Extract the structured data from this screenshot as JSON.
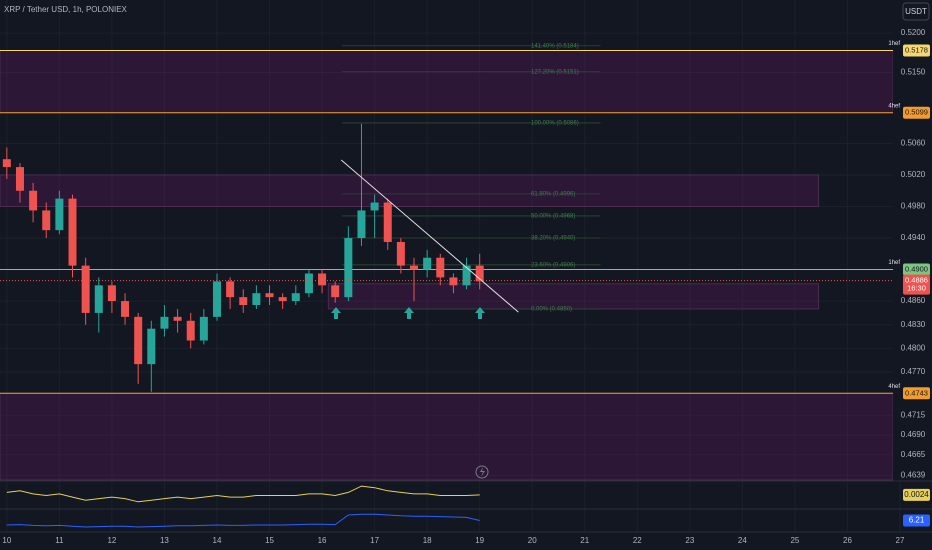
{
  "chart_data": {
    "type": "candlestick",
    "title": "XRP / Tether USD, 1h, POLONIEX",
    "currency_button": "USDT",
    "xlim": [
      9.87,
      27
    ],
    "xticks": [
      10,
      11,
      12,
      13,
      14,
      15,
      16,
      17,
      18,
      19,
      20,
      21,
      22,
      23,
      24,
      25,
      26,
      27
    ],
    "ylim": [
      0.4633,
      0.5242
    ],
    "yticks": [
      {
        "value": 0.52,
        "label": "0.5200"
      },
      {
        "value": 0.515,
        "label": "0.5150"
      },
      {
        "value": 0.506,
        "label": "0.5060"
      },
      {
        "value": 0.502,
        "label": "0.5020"
      },
      {
        "value": 0.498,
        "label": "0.4980"
      },
      {
        "value": 0.494,
        "label": "0.4940"
      },
      {
        "value": 0.486,
        "label": "0.4860"
      },
      {
        "value": 0.483,
        "label": "0.4830"
      },
      {
        "value": 0.48,
        "label": "0.4800"
      },
      {
        "value": 0.477,
        "label": "0.4770"
      },
      {
        "value": 0.4715,
        "label": "0.4715"
      },
      {
        "value": 0.469,
        "label": "0.4690"
      },
      {
        "value": 0.4665,
        "label": "0.4665"
      },
      {
        "value": 0.4639,
        "label": "0.4639"
      }
    ],
    "up_color": "#26a69a",
    "down_color": "#ef5350",
    "x": [
      10,
      10.25,
      10.5,
      10.75,
      11,
      11.25,
      11.5,
      11.75,
      12,
      12.25,
      12.5,
      12.75,
      13,
      13.25,
      13.5,
      13.75,
      14,
      14.25,
      14.5,
      14.75,
      15,
      15.25,
      15.5,
      15.75,
      16,
      16.25,
      16.5,
      16.75,
      17,
      17.25,
      17.5,
      17.75,
      18,
      18.25,
      18.5,
      18.75,
      19
    ],
    "open": [
      0.504,
      0.503,
      0.5,
      0.4975,
      0.495,
      0.499,
      0.4905,
      0.4845,
      0.488,
      0.486,
      0.484,
      0.478,
      0.4825,
      0.484,
      0.4835,
      0.481,
      0.484,
      0.4885,
      0.4865,
      0.4855,
      0.487,
      0.4865,
      0.486,
      0.487,
      0.4895,
      0.488,
      0.4865,
      0.494,
      0.4975,
      0.4985,
      0.4935,
      0.4905,
      0.49,
      0.4915,
      0.489,
      0.488,
      0.4905
    ],
    "high": [
      0.5055,
      0.5035,
      0.501,
      0.4985,
      0.5,
      0.4995,
      0.4915,
      0.489,
      0.4885,
      0.487,
      0.4845,
      0.4835,
      0.4855,
      0.485,
      0.4845,
      0.485,
      0.4895,
      0.489,
      0.4875,
      0.488,
      0.488,
      0.487,
      0.488,
      0.49,
      0.49,
      0.4885,
      0.4955,
      0.5085,
      0.4995,
      0.499,
      0.494,
      0.4915,
      0.4925,
      0.492,
      0.4895,
      0.4915,
      0.492
    ],
    "low": [
      0.5015,
      0.4985,
      0.496,
      0.494,
      0.4945,
      0.489,
      0.483,
      0.482,
      0.4845,
      0.483,
      0.4755,
      0.4745,
      0.4815,
      0.482,
      0.48,
      0.4805,
      0.4835,
      0.485,
      0.4845,
      0.485,
      0.4855,
      0.485,
      0.4855,
      0.4865,
      0.487,
      0.4858,
      0.486,
      0.493,
      0.494,
      0.4925,
      0.4895,
      0.486,
      0.489,
      0.488,
      0.487,
      0.4875,
      0.4875
    ],
    "close": [
      0.503,
      0.5,
      0.4975,
      0.495,
      0.499,
      0.4905,
      0.4845,
      0.488,
      0.486,
      0.484,
      0.478,
      0.4825,
      0.484,
      0.4835,
      0.481,
      0.484,
      0.4885,
      0.4865,
      0.4855,
      0.487,
      0.4865,
      0.486,
      0.487,
      0.4895,
      0.488,
      0.4865,
      0.494,
      0.4975,
      0.4985,
      0.4935,
      0.4905,
      0.49,
      0.4915,
      0.489,
      0.488,
      0.4905,
      0.4885
    ],
    "levels": [
      {
        "value": 0.5178,
        "label": "0.5178",
        "tag": "1hef",
        "color": "#f5d76e"
      },
      {
        "value": 0.5099,
        "label": "0.5099",
        "tag": "4hef",
        "color": "#f39c2b"
      },
      {
        "value": 0.49,
        "label": "0.4900",
        "tag": "1hef",
        "color": "#7cc47f"
      },
      {
        "value": 0.4743,
        "label": "0.4743",
        "tag": "4hef",
        "color": "#f39c2b"
      }
    ],
    "current": {
      "value": 0.4886,
      "label": "0.4886",
      "countdown": "16:30",
      "color": "#ef5350"
    },
    "zones": [
      {
        "low": 0.5099,
        "high": 0.5178
      },
      {
        "low": 0.498,
        "high": 0.502,
        "to": 25.45
      },
      {
        "low": 0.485,
        "high": 0.4882,
        "from": 16.12,
        "to": 25.45
      },
      {
        "low": 0.4633,
        "high": 0.4743
      }
    ],
    "fib": {
      "x": [
        16.38,
        21.3
      ],
      "levels": [
        {
          "value": 0.5184,
          "label": "141.40% (0.5184)"
        },
        {
          "value": 0.5151,
          "label": "127.20% (0.5151)"
        },
        {
          "value": 0.5086,
          "label": "100.00% (0.5086)"
        },
        {
          "value": 0.4996,
          "label": "61.80% (0.4996)"
        },
        {
          "value": 0.4968,
          "label": "50.00% (0.4968)"
        },
        {
          "value": 0.494,
          "label": "38.20% (0.4940)"
        },
        {
          "value": 0.4906,
          "label": "23.60% (0.4906)"
        },
        {
          "value": 0.485,
          "label": "0.00% (0.4850)"
        }
      ]
    },
    "trendline": {
      "x": [
        16.365,
        19.737
      ],
      "y": [
        0.5039,
        0.4846
      ]
    },
    "indicators": [
      {
        "color": "#e6cf5a",
        "ylim": [
          -0.006,
          0.01
        ],
        "last": {
          "value": 0.0024,
          "label": "0.0024"
        },
        "values": [
          0.004,
          0.005,
          0.003,
          0.002,
          0.003,
          0.001,
          -0.001,
          0,
          0.001,
          0,
          -0.002,
          -0.001,
          0,
          0.001,
          0,
          0.001,
          0.002,
          0.001,
          0.001,
          0.002,
          0.002,
          0.002,
          0.002,
          0.003,
          0.003,
          0.002,
          0.004,
          0.008,
          0.007,
          0.005,
          0.004,
          0.003,
          0.003,
          0.002,
          0.002,
          0.002,
          0.0024
        ]
      },
      {
        "color": "#2962ff",
        "ylim": [
          -20,
          30
        ],
        "last": {
          "value": 6.21,
          "label": "6.21"
        },
        "values": [
          -5,
          -4,
          -6,
          -7,
          -6,
          -8,
          -10,
          -9,
          -8,
          -8,
          -10,
          -9,
          -8,
          -7,
          -7,
          -6,
          -5,
          -6,
          -6,
          -5,
          -5,
          -5,
          -4,
          -3,
          -3,
          -4,
          20,
          22,
          22,
          20,
          18,
          17,
          17,
          16,
          15,
          14,
          6.21
        ]
      }
    ]
  }
}
